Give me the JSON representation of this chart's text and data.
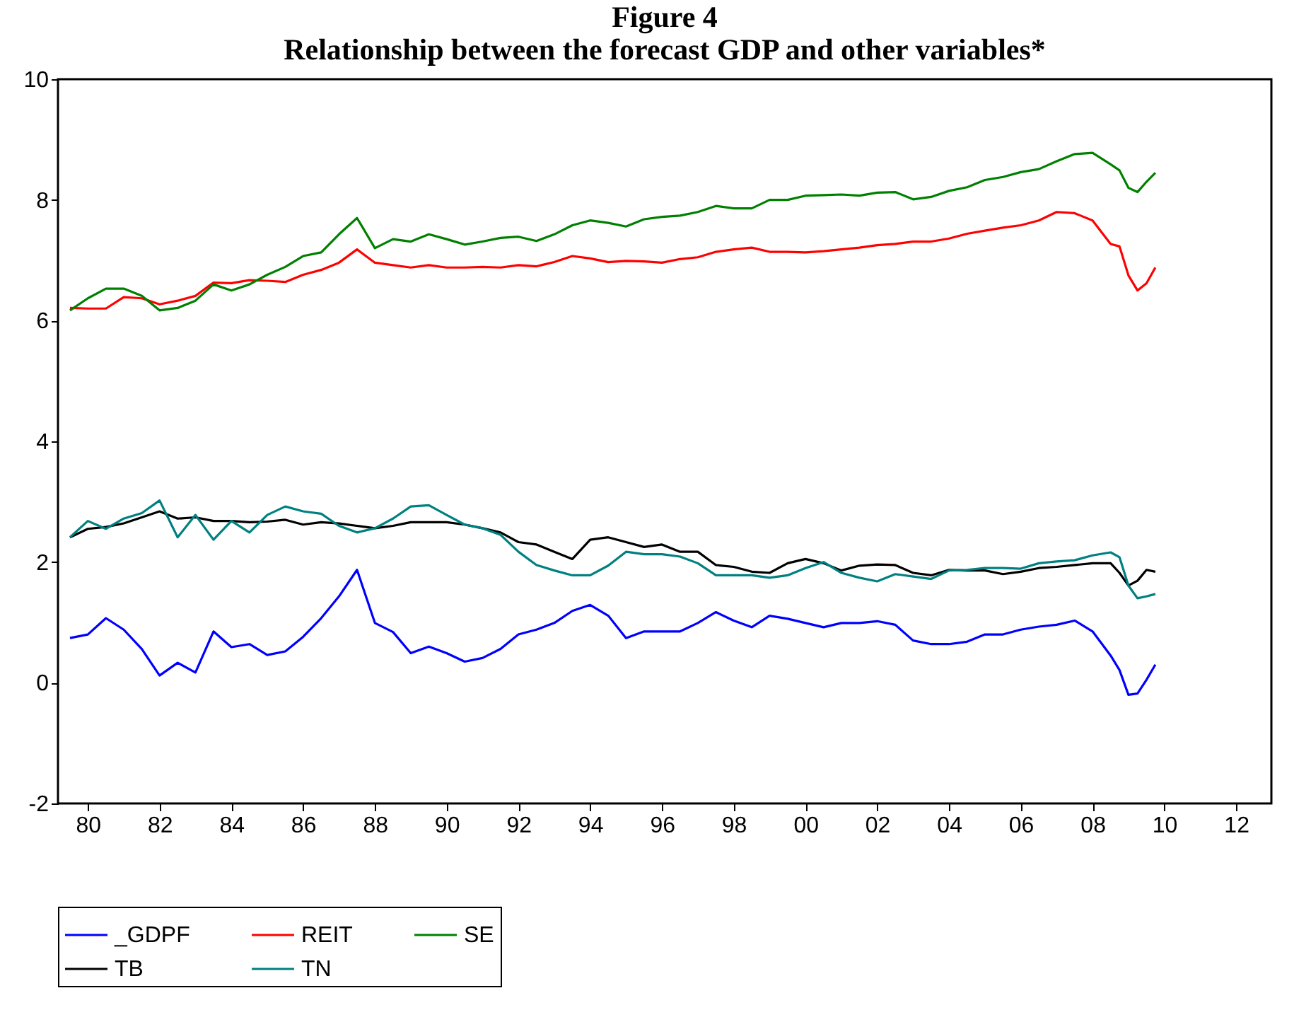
{
  "chart_data": {
    "type": "line",
    "title": "Figure 4",
    "subtitle": "Relationship between the forecast GDP and other variables*",
    "x": [
      "1980-01",
      "1980-07",
      "1981-01",
      "1981-07",
      "1982-01",
      "1982-07",
      "1983-01",
      "1983-07",
      "1984-01",
      "1984-07",
      "1985-01",
      "1985-07",
      "1986-01",
      "1986-07",
      "1987-01",
      "1987-07",
      "1988-01",
      "1988-07",
      "1989-01",
      "1989-07",
      "1990-01",
      "1990-07",
      "1991-01",
      "1991-07",
      "1992-01",
      "1992-07",
      "1993-01",
      "1993-07",
      "1994-01",
      "1994-07",
      "1995-01",
      "1995-07",
      "1996-01",
      "1996-07",
      "1997-01",
      "1997-07",
      "1998-01",
      "1998-07",
      "1999-01",
      "1999-07",
      "2000-01",
      "2000-07",
      "2001-01",
      "2001-07",
      "2002-01",
      "2002-07",
      "2003-01",
      "2003-07",
      "2004-01",
      "2004-07",
      "2005-01",
      "2005-07",
      "2006-01",
      "2006-07",
      "2007-01",
      "2007-07",
      "2008-01",
      "2008-07",
      "2009-01",
      "2009-04",
      "2009-07",
      "2009-10",
      "2010-01",
      "2010-04"
    ],
    "xlim": [
      "1979-09-01",
      "2013-06-25"
    ],
    "xticks": [
      {
        "value": "1980-07",
        "label": "80"
      },
      {
        "value": "1982-07",
        "label": "82"
      },
      {
        "value": "1984-07",
        "label": "84"
      },
      {
        "value": "1986-07",
        "label": "86"
      },
      {
        "value": "1988-07",
        "label": "88"
      },
      {
        "value": "1990-07",
        "label": "90"
      },
      {
        "value": "1992-07",
        "label": "92"
      },
      {
        "value": "1994-07",
        "label": "94"
      },
      {
        "value": "1996-07",
        "label": "96"
      },
      {
        "value": "1998-07",
        "label": "98"
      },
      {
        "value": "2000-07",
        "label": "00"
      },
      {
        "value": "2002-07",
        "label": "02"
      },
      {
        "value": "2004-07",
        "label": "04"
      },
      {
        "value": "2006-07",
        "label": "06"
      },
      {
        "value": "2008-07",
        "label": "08"
      },
      {
        "value": "2010-07",
        "label": "10"
      },
      {
        "value": "2012-07",
        "label": "12"
      }
    ],
    "ylim": [
      -2,
      10
    ],
    "yticks": [
      -2,
      0,
      2,
      4,
      6,
      8,
      10
    ],
    "legend": "bottom",
    "series": [
      {
        "name": "_GDPF",
        "color": "#0000ff",
        "values": [
          0.74,
          0.8,
          1.07,
          0.88,
          0.56,
          0.12,
          0.33,
          0.17,
          0.85,
          0.59,
          0.64,
          0.46,
          0.52,
          0.76,
          1.07,
          1.43,
          1.87,
          0.99,
          0.84,
          0.49,
          0.6,
          0.49,
          0.35,
          0.41,
          0.56,
          0.8,
          0.88,
          0.99,
          1.19,
          1.29,
          1.11,
          0.74,
          0.85,
          0.85,
          0.85,
          0.99,
          1.17,
          1.03,
          0.92,
          1.11,
          1.06,
          0.99,
          0.92,
          0.99,
          0.99,
          1.02,
          0.96,
          0.7,
          0.64,
          0.64,
          0.68,
          0.8,
          0.8,
          0.88,
          0.93,
          0.96,
          1.03,
          0.85,
          0.45,
          0.21,
          -0.2,
          -0.18,
          0.05,
          0.3
        ]
      },
      {
        "name": "REIT",
        "color": "#ff0000",
        "values": [
          6.21,
          6.2,
          6.2,
          6.39,
          6.37,
          6.27,
          6.33,
          6.41,
          6.63,
          6.62,
          6.67,
          6.66,
          6.64,
          6.76,
          6.84,
          6.96,
          7.18,
          6.96,
          6.92,
          6.88,
          6.92,
          6.88,
          6.88,
          6.89,
          6.88,
          6.92,
          6.9,
          6.97,
          7.07,
          7.03,
          6.97,
          6.99,
          6.98,
          6.96,
          7.02,
          7.05,
          7.14,
          7.18,
          7.21,
          7.14,
          7.14,
          7.13,
          7.15,
          7.18,
          7.21,
          7.25,
          7.27,
          7.31,
          7.31,
          7.36,
          7.44,
          7.49,
          7.54,
          7.58,
          7.66,
          7.8,
          7.78,
          7.66,
          7.27,
          7.23,
          6.75,
          6.5,
          6.62,
          6.88
        ]
      },
      {
        "name": "SE",
        "color": "#008000",
        "values": [
          6.17,
          6.37,
          6.53,
          6.53,
          6.41,
          6.17,
          6.21,
          6.33,
          6.6,
          6.5,
          6.6,
          6.76,
          6.89,
          7.07,
          7.13,
          7.43,
          7.7,
          7.2,
          7.35,
          7.31,
          7.43,
          7.35,
          7.26,
          7.31,
          7.37,
          7.39,
          7.32,
          7.43,
          7.58,
          7.66,
          7.62,
          7.56,
          7.68,
          7.72,
          7.74,
          7.8,
          7.9,
          7.86,
          7.86,
          8.0,
          8.0,
          8.07,
          8.08,
          8.09,
          8.07,
          8.12,
          8.13,
          8.01,
          8.05,
          8.15,
          8.21,
          8.33,
          8.38,
          8.46,
          8.51,
          8.64,
          8.76,
          8.78,
          8.59,
          8.49,
          8.2,
          8.13,
          8.3,
          8.45
        ]
      },
      {
        "name": "TB",
        "color": "#000000",
        "values": [
          2.41,
          2.55,
          2.58,
          2.64,
          2.74,
          2.84,
          2.72,
          2.74,
          2.68,
          2.68,
          2.66,
          2.67,
          2.7,
          2.62,
          2.66,
          2.64,
          2.6,
          2.56,
          2.6,
          2.66,
          2.66,
          2.66,
          2.62,
          2.56,
          2.49,
          2.33,
          2.29,
          2.17,
          2.05,
          2.37,
          2.41,
          2.33,
          2.25,
          2.29,
          2.17,
          2.17,
          1.95,
          1.92,
          1.84,
          1.82,
          1.98,
          2.05,
          1.98,
          1.86,
          1.94,
          1.96,
          1.95,
          1.82,
          1.78,
          1.87,
          1.86,
          1.86,
          1.8,
          1.84,
          1.9,
          1.92,
          1.95,
          1.98,
          1.98,
          1.82,
          1.61,
          1.69,
          1.87,
          1.84
        ]
      },
      {
        "name": "TN",
        "color": "#008080",
        "values": [
          2.41,
          2.68,
          2.55,
          2.72,
          2.81,
          3.02,
          2.41,
          2.78,
          2.37,
          2.68,
          2.49,
          2.78,
          2.92,
          2.84,
          2.8,
          2.6,
          2.49,
          2.56,
          2.72,
          2.92,
          2.94,
          2.78,
          2.62,
          2.56,
          2.45,
          2.17,
          1.95,
          1.86,
          1.78,
          1.78,
          1.94,
          2.17,
          2.13,
          2.13,
          2.09,
          1.98,
          1.78,
          1.78,
          1.78,
          1.74,
          1.78,
          1.9,
          2.0,
          1.82,
          1.74,
          1.68,
          1.8,
          1.76,
          1.72,
          1.86,
          1.87,
          1.9,
          1.9,
          1.89,
          1.98,
          2.01,
          2.03,
          2.11,
          2.16,
          2.08,
          1.61,
          1.4,
          1.43,
          1.47
        ]
      }
    ]
  }
}
